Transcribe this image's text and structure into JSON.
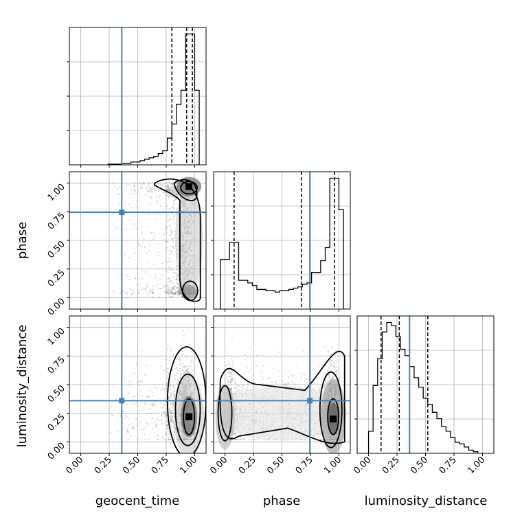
{
  "chart_data": {
    "type": "corner",
    "parameters": [
      "geocent_time",
      "phase",
      "luminosity_distance"
    ],
    "tick_labels": [
      "0.00",
      "0.25",
      "0.50",
      "0.75",
      "1.00"
    ],
    "axis_range": [
      -0.1,
      1.1
    ],
    "grid": true,
    "colors": {
      "truth": "#4682b4",
      "contour": "#000000",
      "scatter": "#9a9a9a"
    },
    "truths": {
      "geocent_time": 0.36,
      "phase": 0.745,
      "luminosity_distance": 0.36
    },
    "quantiles": {
      "geocent_time": [
        0.8,
        0.93,
        0.98
      ],
      "phase": [
        0.08,
        0.67,
        0.96
      ],
      "luminosity_distance": [
        0.11,
        0.27,
        0.52
      ]
    },
    "histograms": {
      "geocent_time": {
        "edges": [
          0.24,
          0.28,
          0.32,
          0.36,
          0.4,
          0.44,
          0.48,
          0.52,
          0.56,
          0.6,
          0.64,
          0.68,
          0.72,
          0.76,
          0.8,
          0.84,
          0.88,
          0.92,
          0.96,
          1.0,
          1.04
        ],
        "counts": [
          0.005,
          0.005,
          0.005,
          0.01,
          0.01,
          0.02,
          0.02,
          0.03,
          0.04,
          0.05,
          0.06,
          0.08,
          0.1,
          0.19,
          0.29,
          0.43,
          0.53,
          0.93,
          0.93,
          0.53
        ]
      },
      "phase": {
        "edges": [
          -0.04,
          0.0,
          0.04,
          0.08,
          0.12,
          0.16,
          0.2,
          0.24,
          0.28,
          0.32,
          0.36,
          0.4,
          0.44,
          0.48,
          0.52,
          0.56,
          0.6,
          0.64,
          0.68,
          0.72,
          0.76,
          0.8,
          0.84,
          0.88,
          0.92,
          0.96,
          1.0,
          1.04
        ],
        "counts": [
          0.38,
          0.38,
          0.51,
          0.51,
          0.22,
          0.22,
          0.2,
          0.18,
          0.15,
          0.15,
          0.14,
          0.14,
          0.13,
          0.14,
          0.14,
          0.15,
          0.16,
          0.17,
          0.19,
          0.2,
          0.28,
          0.28,
          0.37,
          0.47,
          1.0,
          1.0,
          0.76
        ]
      },
      "luminosity_distance": {
        "edges": [
          0.0,
          0.04,
          0.08,
          0.12,
          0.16,
          0.2,
          0.24,
          0.28,
          0.32,
          0.36,
          0.4,
          0.44,
          0.48,
          0.52,
          0.56,
          0.6,
          0.64,
          0.68,
          0.72,
          0.76,
          0.8,
          0.84,
          0.88,
          0.92,
          0.96
        ],
        "counts": [
          0.14,
          0.43,
          0.6,
          0.77,
          0.83,
          0.81,
          0.74,
          0.66,
          0.62,
          0.55,
          0.48,
          0.42,
          0.35,
          0.31,
          0.26,
          0.22,
          0.17,
          0.14,
          0.1,
          0.07,
          0.06,
          0.04,
          0.02,
          0.01
        ]
      }
    },
    "density_modes": [
      {
        "x": "geocent_time",
        "y": "phase",
        "x_mode": 0.95,
        "y_modes": [
          0.97,
          0.05
        ]
      },
      {
        "x": "geocent_time",
        "y": "luminosity_distance",
        "x_mode": 0.95,
        "y_modes": [
          0.22
        ]
      },
      {
        "x": "phase",
        "y": "luminosity_distance",
        "x_modes": [
          0.0,
          0.95
        ],
        "y_mode": 0.2
      }
    ]
  }
}
